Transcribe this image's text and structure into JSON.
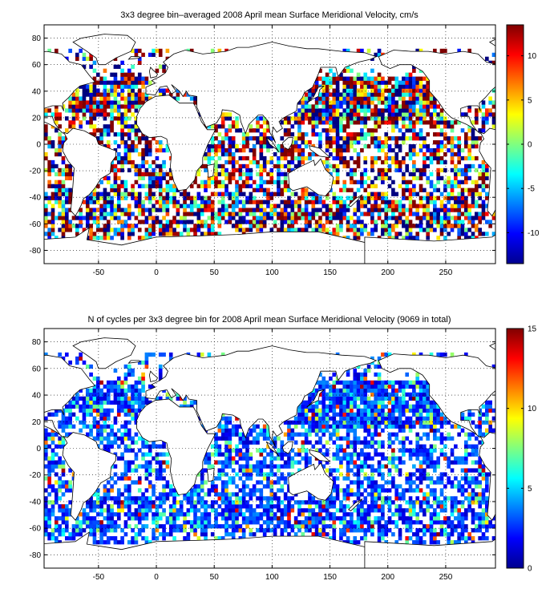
{
  "chart_data": [
    {
      "type": "heatmap",
      "title": "3x3 degree bin–averaged 2008 April mean Surface Meridional Velocity, cm/s",
      "xlim": [
        -97,
        293
      ],
      "ylim": [
        -90,
        90
      ],
      "x_ticks": [
        -50,
        0,
        50,
        100,
        150,
        200,
        250
      ],
      "y_ticks": [
        -80,
        -60,
        -40,
        -20,
        0,
        20,
        40,
        60,
        80
      ],
      "grid": "dotted",
      "colorbar": {
        "range": [
          -13.5,
          13.5
        ],
        "ticks": [
          -10,
          -5,
          0,
          5,
          10
        ],
        "colormap": "jet"
      },
      "bin_size_deg": 3
    },
    {
      "type": "heatmap",
      "title": "N of cycles per 3x3 degree bin for 2008 April mean Surface Meridional Velocity (9069 in total)",
      "xlim": [
        -97,
        293
      ],
      "ylim": [
        -90,
        90
      ],
      "x_ticks": [
        -50,
        0,
        50,
        100,
        150,
        200,
        250
      ],
      "y_ticks": [
        -80,
        -60,
        -40,
        -20,
        0,
        20,
        40,
        60,
        80
      ],
      "grid": "dotted",
      "colorbar": {
        "range": [
          0,
          15
        ],
        "ticks": [
          0,
          5,
          10,
          15
        ],
        "colormap": "jet"
      },
      "bin_size_deg": 3
    }
  ]
}
